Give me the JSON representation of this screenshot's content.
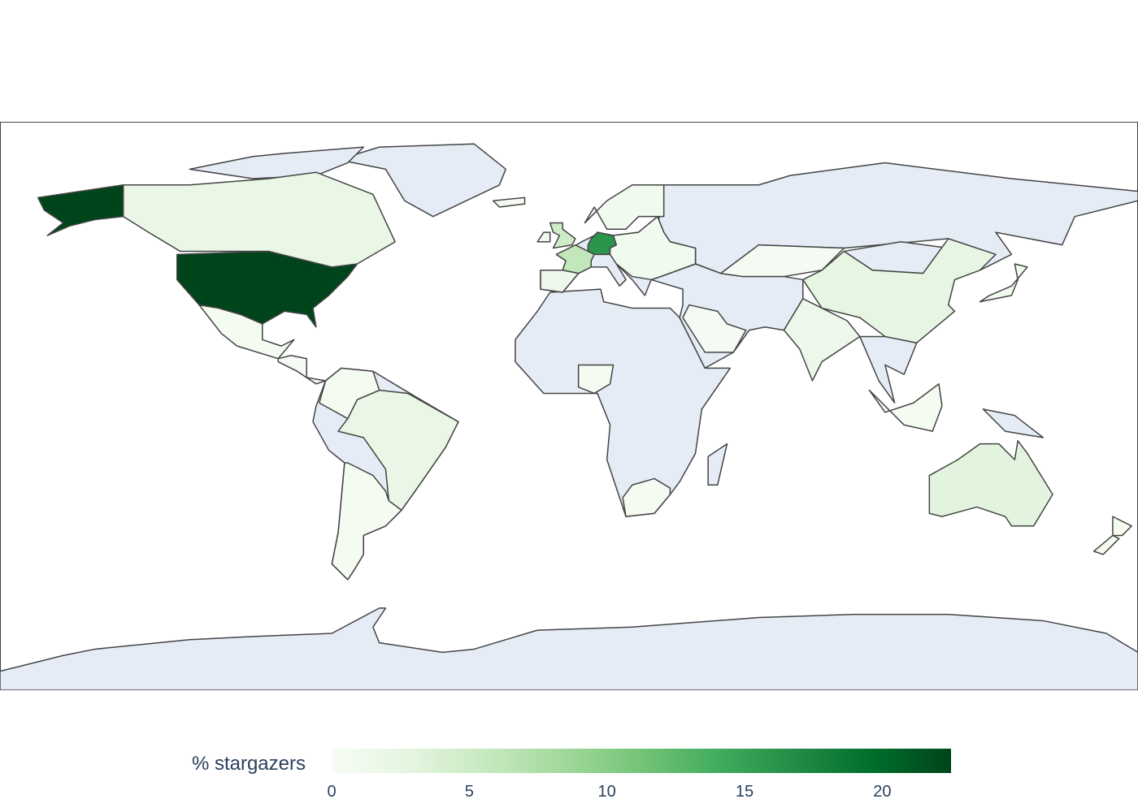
{
  "chart_data": {
    "type": "choropleth",
    "projection": "equirectangular",
    "colorbar": {
      "title": "% stargazers",
      "ticks": [
        "0",
        "5",
        "10",
        "15",
        "20"
      ],
      "range": [
        0,
        22.5
      ]
    },
    "colorscale": [
      "#f7fcf5",
      "#e5f5e0",
      "#c7e9c0",
      "#a1d99b",
      "#74c476",
      "#41ab5d",
      "#238b45",
      "#006d2c",
      "#00441b"
    ],
    "no_data_color": "#e5ecf6",
    "border_color": "#444444",
    "countries": [
      {
        "name": "United States",
        "value": 22.5
      },
      {
        "name": "Germany",
        "value": 16
      },
      {
        "name": "France",
        "value": 6
      },
      {
        "name": "United Kingdom",
        "value": 5
      },
      {
        "name": "Australia",
        "value": 3
      },
      {
        "name": "China",
        "value": 2.5
      },
      {
        "name": "Canada",
        "value": 2
      },
      {
        "name": "Brazil",
        "value": 2
      },
      {
        "name": "India",
        "value": 1.5
      },
      {
        "name": "Spain",
        "value": 1.5
      },
      {
        "name": "Japan",
        "value": 1
      },
      {
        "name": "Nordics",
        "value": 1
      },
      {
        "name": "Eastern Europe",
        "value": 1
      },
      {
        "name": "Ireland",
        "value": 1
      },
      {
        "name": "Mexico",
        "value": 0.5
      },
      {
        "name": "Central America",
        "value": 0.3
      },
      {
        "name": "Argentina/Chile",
        "value": 0.5
      },
      {
        "name": "Colombia/Venezuela",
        "value": 0.5
      },
      {
        "name": "South Africa",
        "value": 0.5
      },
      {
        "name": "Nigeria",
        "value": 0.5
      },
      {
        "name": "Kazakhstan",
        "value": 0.3
      },
      {
        "name": "Saudi Arabia",
        "value": 0.3
      },
      {
        "name": "Indonesia",
        "value": 0.5
      },
      {
        "name": "New Zealand",
        "value": 0.5
      },
      {
        "name": "Iceland",
        "value": 0.3
      },
      {
        "name": "Alaska",
        "value": 22.5
      }
    ]
  }
}
